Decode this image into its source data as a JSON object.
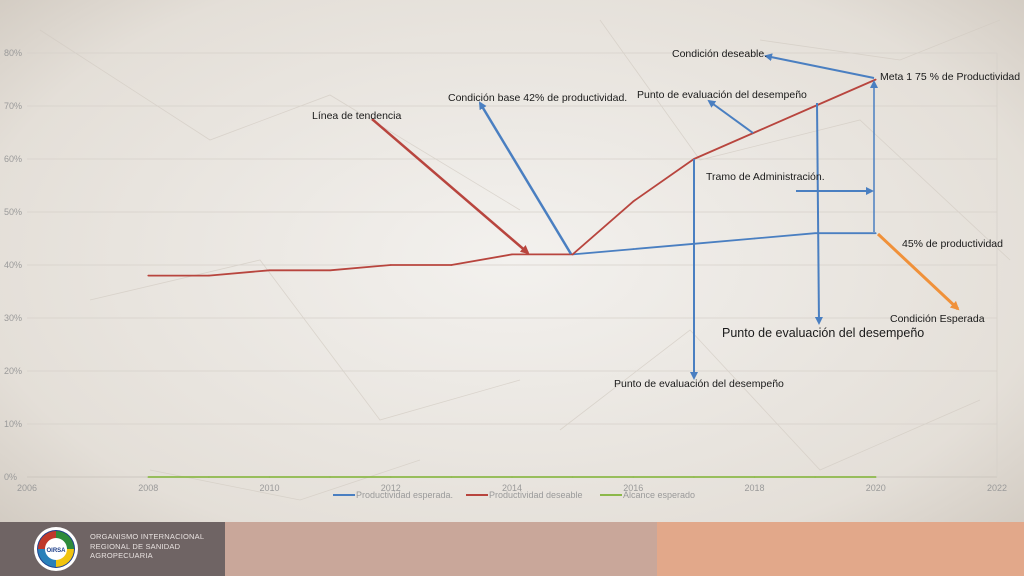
{
  "chart_data": {
    "type": "line",
    "title": "",
    "xlabel": "",
    "ylabel": "",
    "xlim": [
      2006,
      2022
    ],
    "ylim": [
      0,
      80
    ],
    "x_ticks": [
      "2006",
      "2008",
      "2010",
      "2012",
      "2014",
      "2016",
      "2018",
      "2020",
      "2022"
    ],
    "y_ticks": [
      "0%",
      "10%",
      "20%",
      "30%",
      "40%",
      "50%",
      "60%",
      "70%",
      "80%"
    ],
    "grid": "horizontal",
    "legend_position": "bottom",
    "series": [
      {
        "name": "Productividad esperada.",
        "color": "#4a7fc1",
        "points": [
          [
            2015,
            42
          ],
          [
            2016,
            43
          ],
          [
            2017,
            44
          ],
          [
            2018,
            45
          ],
          [
            2019,
            46
          ],
          [
            2020,
            46
          ]
        ]
      },
      {
        "name": "Productividad deseable",
        "color": "#b8453e",
        "points": [
          [
            2008,
            38
          ],
          [
            2009,
            38
          ],
          [
            2010,
            39
          ],
          [
            2011,
            39
          ],
          [
            2012,
            40
          ],
          [
            2013,
            40
          ],
          [
            2014,
            42
          ],
          [
            2015,
            42
          ],
          [
            2016,
            52
          ],
          [
            2017,
            60
          ],
          [
            2018,
            65
          ],
          [
            2019,
            70
          ],
          [
            2020,
            75
          ]
        ]
      },
      {
        "name": "Alcance esperado",
        "color": "#8cb84a",
        "points": [
          [
            2008,
            0
          ],
          [
            2009,
            0
          ],
          [
            2010,
            0
          ],
          [
            2011,
            0
          ],
          [
            2012,
            0
          ],
          [
            2013,
            0
          ],
          [
            2014,
            0
          ],
          [
            2015,
            0
          ],
          [
            2016,
            0
          ],
          [
            2017,
            0
          ],
          [
            2018,
            0
          ],
          [
            2019,
            0
          ],
          [
            2020,
            0
          ]
        ]
      }
    ],
    "annotations": [
      {
        "id": "condicion-deseable",
        "text": "Condición deseable."
      },
      {
        "id": "meta",
        "text": "Meta 1 75 % de Productividad"
      },
      {
        "id": "punto-eval-top",
        "text": "Punto de evaluación del desempeño"
      },
      {
        "id": "condicion-base",
        "text": "Condición base 42% de productividad."
      },
      {
        "id": "linea-tendencia",
        "text": "Línea de tendencia"
      },
      {
        "id": "tramo",
        "text": "Tramo de Administración."
      },
      {
        "id": "productividad-45",
        "text": "45% de productividad"
      },
      {
        "id": "condicion-esperada",
        "text": "Condición Esperada"
      },
      {
        "id": "punto-eval-mid",
        "text": "Punto de evaluación del desempeño"
      },
      {
        "id": "punto-eval-bottom",
        "text": "Punto de evaluación del desempeño"
      }
    ]
  },
  "footer": {
    "org_name_lines": [
      "ORGANISMO INTERNACIONAL",
      "REGIONAL DE SANIDAD",
      "AGROPECUARIA"
    ],
    "logo_text": "OIRSA"
  },
  "colors": {
    "arrow_blue": "#4a7fc1",
    "arrow_red": "#b8453e",
    "arrow_orange": "#f0913a"
  }
}
